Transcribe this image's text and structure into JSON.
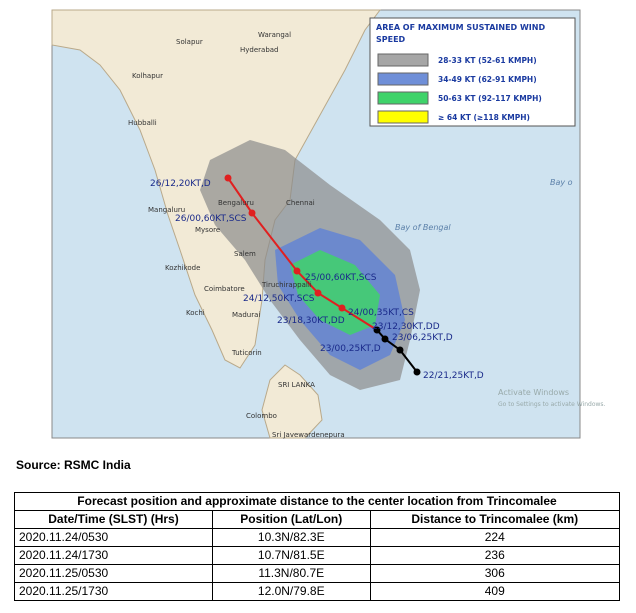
{
  "map": {
    "legend": {
      "title_lines": [
        "AREA OF MAXIMUM SUSTAINED WIND",
        "SPEED"
      ],
      "items": [
        {
          "label": "28-33 KT (52-61 KMPH)",
          "color": "#a6a6a6"
        },
        {
          "label": "34-49 KT (62-91 KMPH)",
          "color": "#6f8fd8"
        },
        {
          "label": "50-63 KT (92-117 KMPH)",
          "color": "#3fd36a"
        },
        {
          "label": "≥ 64 KT (≥118 KMPH)",
          "color": "#ffff00"
        }
      ]
    },
    "places": [
      "Warangal",
      "Hyderabad",
      "Solapur",
      "Kolhapur",
      "Hubballi",
      "Mangaluru",
      "Bengaluru",
      "Mysore",
      "Chennai",
      "Salem",
      "Kozhikode",
      "Coimbatore",
      "Tiruchirappalli",
      "Kochi",
      "Madurai",
      "Tuticorin",
      "SRI LANKA",
      "Colombo",
      "Sri Javewardenepura"
    ],
    "sea_labels": [
      "Bay of Bengal",
      "Bay o"
    ],
    "track_labels": [
      "26/12,20KT,D",
      "26/00,60KT,SCS",
      "25/00,60KT,SCS",
      "24/12,50KT,SCS",
      "24/00,35KT,CS",
      "23/18,30KT,DD",
      "23/12,30KT,DD",
      "23/06,25KT,D",
      "23/00,25KT,D",
      "22/21,25KT,D"
    ],
    "watermark": [
      "Activate Windows",
      "Go to Settings to activate Windows."
    ]
  },
  "source": "Source: RSMC India",
  "table": {
    "title": "Forecast position and approximate distance to the center location from Trincomalee",
    "columns": [
      "Date/Time (SLST) (Hrs)",
      "Position (Lat/Lon)",
      "Distance to Trincomalee (km)"
    ],
    "rows": [
      [
        "2020.11.24/0530",
        "10.3N/82.3E",
        "224"
      ],
      [
        "2020.11.24/1730",
        "10.7N/81.5E",
        "236"
      ],
      [
        "2020.11.25/0530",
        "11.3N/80.7E",
        "306"
      ],
      [
        "2020.11.25/1730",
        "12.0N/79.8E",
        "409"
      ]
    ]
  }
}
